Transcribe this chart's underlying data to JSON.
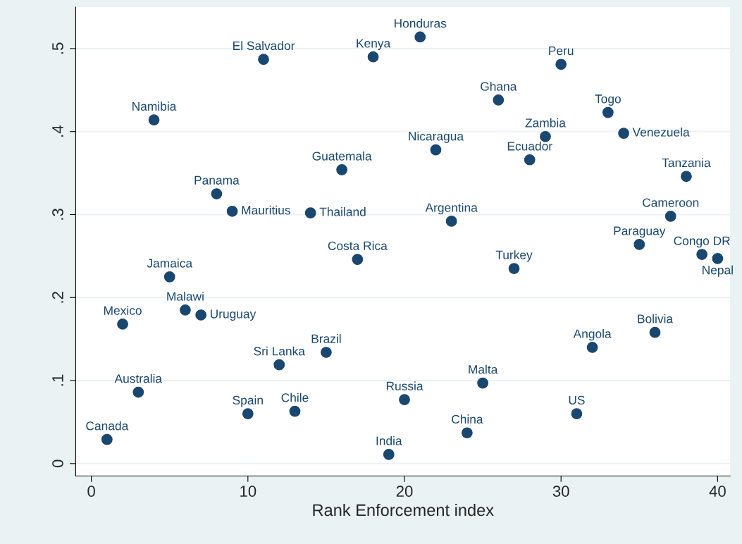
{
  "chart_data": {
    "type": "scatter",
    "xlabel": "Rank Enforcement index",
    "x": [
      1,
      2,
      3,
      4,
      5,
      6,
      7,
      8,
      9,
      10,
      11,
      12,
      13,
      14,
      15,
      16,
      17,
      18,
      19,
      20,
      21,
      22,
      23,
      24,
      25,
      26,
      27,
      28,
      29,
      30,
      31,
      32,
      33,
      34,
      35,
      36,
      37,
      38,
      39,
      40
    ],
    "series": [
      {
        "color": "#1a476f",
        "values": [
          0.029,
          0.168,
          0.086,
          0.414,
          0.225,
          0.185,
          0.179,
          0.325,
          0.304,
          0.06,
          0.487,
          0.119,
          0.063,
          0.302,
          0.134,
          0.354,
          0.246,
          0.49,
          0.011,
          0.077,
          0.514,
          0.378,
          0.292,
          0.037,
          0.097,
          0.438,
          0.235,
          0.366,
          0.394,
          0.481,
          0.06,
          0.14,
          0.423,
          0.398,
          0.264,
          0.158,
          0.298,
          0.346,
          0.252,
          0.247
        ]
      }
    ],
    "annotations": [
      {
        "text": "Canada",
        "x": 1,
        "y": 0.029
      },
      {
        "text": "Mexico",
        "x": 2,
        "y": 0.168
      },
      {
        "text": "Australia",
        "x": 3,
        "y": 0.086
      },
      {
        "text": "Namibia",
        "x": 4,
        "y": 0.414
      },
      {
        "text": "Jamaica",
        "x": 5,
        "y": 0.225
      },
      {
        "text": "Malawi",
        "x": 6,
        "y": 0.185
      },
      {
        "text": "Uruguay",
        "x": 7,
        "y": 0.179
      },
      {
        "text": "Panama",
        "x": 8,
        "y": 0.325
      },
      {
        "text": "Mauritius",
        "x": 9,
        "y": 0.304
      },
      {
        "text": "Spain",
        "x": 10,
        "y": 0.06
      },
      {
        "text": "El Salvador",
        "x": 11,
        "y": 0.487
      },
      {
        "text": "Sri Lanka",
        "x": 12,
        "y": 0.119
      },
      {
        "text": "Chile",
        "x": 13,
        "y": 0.063
      },
      {
        "text": "Thailand",
        "x": 14,
        "y": 0.302
      },
      {
        "text": "Brazil",
        "x": 15,
        "y": 0.134
      },
      {
        "text": "Guatemala",
        "x": 16,
        "y": 0.354
      },
      {
        "text": "Costa Rica",
        "x": 17,
        "y": 0.246
      },
      {
        "text": "Kenya",
        "x": 18,
        "y": 0.49
      },
      {
        "text": "India",
        "x": 19,
        "y": 0.011
      },
      {
        "text": "Russia",
        "x": 20,
        "y": 0.077
      },
      {
        "text": "Honduras",
        "x": 21,
        "y": 0.514
      },
      {
        "text": "Nicaragua",
        "x": 22,
        "y": 0.378
      },
      {
        "text": "Argentina",
        "x": 23,
        "y": 0.292
      },
      {
        "text": "China",
        "x": 24,
        "y": 0.037
      },
      {
        "text": "Malta",
        "x": 25,
        "y": 0.097
      },
      {
        "text": "Ghana",
        "x": 26,
        "y": 0.438
      },
      {
        "text": "Turkey",
        "x": 27,
        "y": 0.235
      },
      {
        "text": "Ecuador",
        "x": 28,
        "y": 0.366
      },
      {
        "text": "Zambia",
        "x": 29,
        "y": 0.394
      },
      {
        "text": "Peru",
        "x": 30,
        "y": 0.481
      },
      {
        "text": "US",
        "x": 31,
        "y": 0.06
      },
      {
        "text": "Angola",
        "x": 32,
        "y": 0.14
      },
      {
        "text": "Togo",
        "x": 33,
        "y": 0.423
      },
      {
        "text": "Venezuela",
        "x": 34,
        "y": 0.398
      },
      {
        "text": "Paraguay",
        "x": 35,
        "y": 0.264
      },
      {
        "text": "Bolivia",
        "x": 36,
        "y": 0.158
      },
      {
        "text": "Cameroon",
        "x": 37,
        "y": 0.298
      },
      {
        "text": "Tanzania",
        "x": 38,
        "y": 0.346
      },
      {
        "text": "Congo DR",
        "x": 39,
        "y": 0.252
      },
      {
        "text": "Nepal",
        "x": 40,
        "y": 0.247
      }
    ],
    "xlim": [
      -1,
      40.8
    ],
    "xticks": [
      0,
      10,
      20,
      30,
      40
    ],
    "ylim": [
      -0.015,
      0.55
    ],
    "yticks": [
      {
        "value": 0,
        "label": "0"
      },
      {
        "value": 0.1,
        "label": ".1"
      },
      {
        "value": 0.2,
        "label": ".2"
      },
      {
        "value": 0.3,
        "label": ".3"
      },
      {
        "value": 0.4,
        "label": ".4"
      },
      {
        "value": 0.5,
        "label": ".5"
      }
    ],
    "grid": "y",
    "legend": false,
    "marker": "circle"
  }
}
